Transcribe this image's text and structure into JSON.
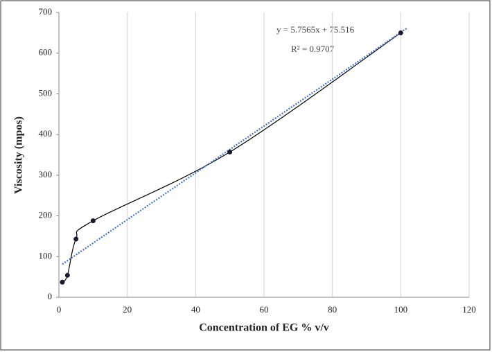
{
  "chart_data": {
    "type": "scatter",
    "x_label": "Concentration  of EG  % v/v",
    "y_label": "Viscosity (mpos)",
    "series": [
      {
        "name": "Viscosity",
        "color": "#000000",
        "x": [
          1,
          2.5,
          5,
          10,
          50,
          100
        ],
        "values": [
          37,
          54,
          143,
          188,
          357,
          650
        ]
      }
    ],
    "trendline": {
      "x": [
        1,
        102
      ],
      "slope": 5.7565,
      "intercept": 75.516,
      "color": "#4472c4"
    },
    "annotations": [
      "y = 5.7565x   + 75.516",
      "R² = 0.9707"
    ],
    "xlim": [
      0,
      120
    ],
    "xticks": [
      0,
      20,
      40,
      60,
      80,
      100,
      120
    ],
    "ylim": [
      0,
      700
    ],
    "yticks": [
      0,
      100,
      200,
      300,
      400,
      500,
      600,
      700
    ],
    "grid": "x"
  }
}
